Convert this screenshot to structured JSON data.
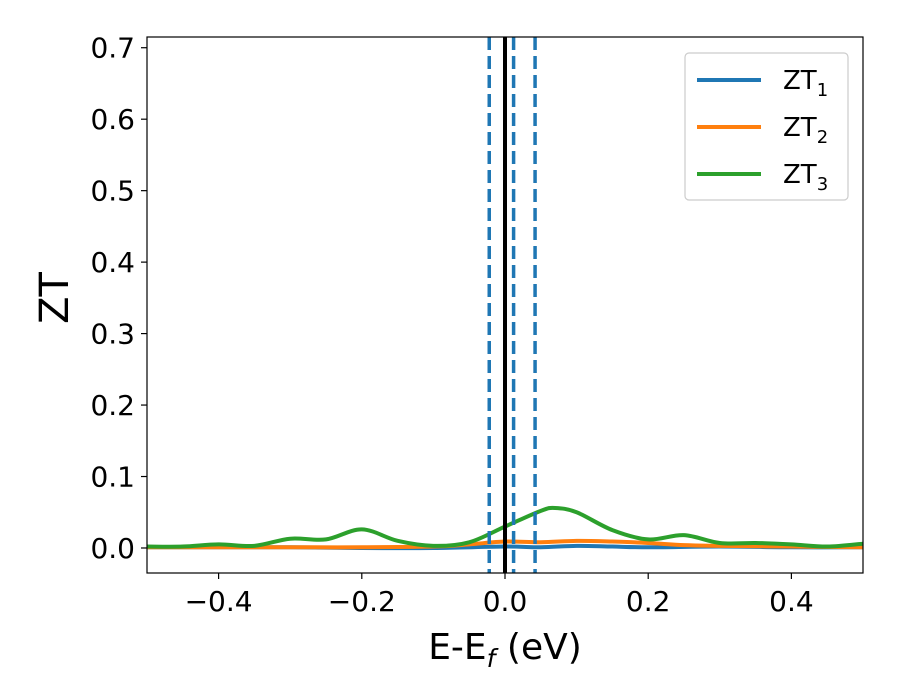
{
  "chart_data": {
    "type": "line",
    "xlabel": "E-E",
    "xlabel_sub": "f",
    "xlabel_unit": " (eV)",
    "ylabel": "ZT",
    "xlim": [
      -0.5,
      0.5
    ],
    "ylim": [
      -0.035,
      0.715
    ],
    "xticks": [
      -0.4,
      -0.2,
      0.0,
      0.2,
      0.4
    ],
    "xtick_labels": [
      "−0.4",
      "−0.2",
      "0.0",
      "0.2",
      "0.4"
    ],
    "yticks": [
      0.0,
      0.1,
      0.2,
      0.3,
      0.4,
      0.5,
      0.6,
      0.7
    ],
    "ytick_labels": [
      "0.0",
      "0.1",
      "0.2",
      "0.3",
      "0.4",
      "0.5",
      "0.6",
      "0.7"
    ],
    "legend_position": "top-right",
    "grid": false,
    "vlines": [
      {
        "x": 0.0,
        "style": "solid",
        "color": "#000000"
      },
      {
        "x": -0.022,
        "style": "dashed",
        "color": "#1f77b4"
      },
      {
        "x": 0.012,
        "style": "dashed",
        "color": "#1f77b4"
      },
      {
        "x": 0.042,
        "style": "dashed",
        "color": "#1f77b4"
      }
    ],
    "series": [
      {
        "name": "ZT",
        "name_sub": "1",
        "color": "#1f77b4",
        "x": [
          -0.5,
          -0.4,
          -0.3,
          -0.2,
          -0.1,
          0.0,
          0.05,
          0.1,
          0.15,
          0.2,
          0.3,
          0.4,
          0.5
        ],
        "y": [
          0.001,
          0.001,
          0.001,
          0.0,
          0.0,
          0.002,
          0.001,
          0.003,
          0.002,
          0.001,
          0.002,
          0.001,
          0.001
        ]
      },
      {
        "name": "ZT",
        "name_sub": "2",
        "color": "#ff7f0e",
        "x": [
          -0.5,
          -0.4,
          -0.3,
          -0.2,
          -0.1,
          -0.05,
          0.0,
          0.05,
          0.1,
          0.15,
          0.2,
          0.25,
          0.3,
          0.4,
          0.5
        ],
        "y": [
          0.001,
          0.001,
          0.001,
          0.001,
          0.002,
          0.005,
          0.009,
          0.008,
          0.01,
          0.009,
          0.007,
          0.004,
          0.003,
          0.002,
          0.001
        ]
      },
      {
        "name": "ZT",
        "name_sub": "3",
        "color": "#2ca02c",
        "x": [
          -0.5,
          -0.45,
          -0.4,
          -0.35,
          -0.3,
          -0.25,
          -0.2,
          -0.15,
          -0.1,
          -0.05,
          0.0,
          0.05,
          0.07,
          0.1,
          0.15,
          0.2,
          0.25,
          0.3,
          0.35,
          0.4,
          0.45,
          0.5
        ],
        "y": [
          0.002,
          0.002,
          0.005,
          0.003,
          0.013,
          0.012,
          0.026,
          0.01,
          0.003,
          0.008,
          0.03,
          0.052,
          0.056,
          0.05,
          0.025,
          0.012,
          0.018,
          0.007,
          0.007,
          0.005,
          0.002,
          0.006
        ]
      }
    ]
  }
}
